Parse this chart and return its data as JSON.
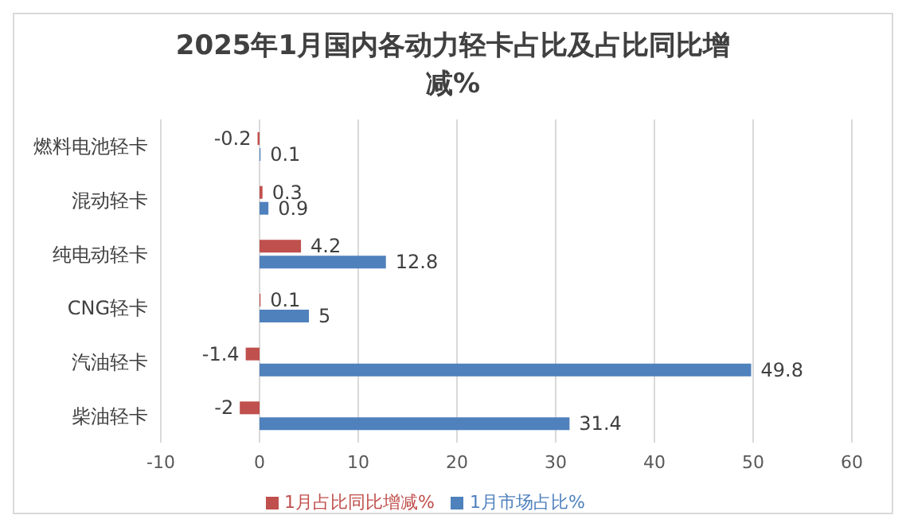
{
  "chart_data": {
    "type": "bar",
    "orientation": "horizontal",
    "title": "2025年1月国内各动力轻卡占比及占比同比增减%",
    "categories": [
      "燃料电池轻卡",
      "混动轻卡",
      "纯电动轻卡",
      "CNG轻卡",
      "汽油轻卡",
      "柴油轻卡"
    ],
    "series": [
      {
        "name": "1月占比同比增减%",
        "color": "#c0504d",
        "values": [
          -0.2,
          0.3,
          4.2,
          0.1,
          -1.4,
          -2
        ]
      },
      {
        "name": "1月市场占比%",
        "color": "#4f81bd",
        "values": [
          0.1,
          0.9,
          12.8,
          5,
          49.8,
          31.4
        ]
      }
    ],
    "xlim": [
      -10,
      60
    ],
    "xticks": [
      -10,
      0,
      10,
      20,
      30,
      40,
      50,
      60
    ],
    "grid": "x",
    "legend": "bottom",
    "data_labels": true
  }
}
